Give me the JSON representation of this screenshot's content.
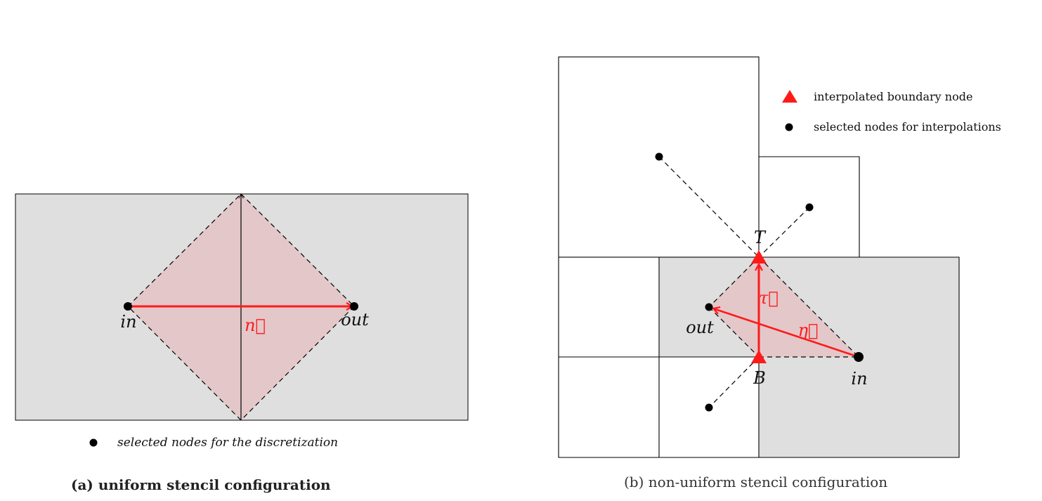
{
  "panel_a": {
    "labels": {
      "in": "in",
      "out": "out",
      "normal": "n⃗"
    },
    "legend_dot": "selected nodes for the discretization",
    "caption": "(a) uniform stencil configuration"
  },
  "panel_b": {
    "labels": {
      "T": "T",
      "B": "B",
      "out": "out",
      "in": "in",
      "tau": "τ⃗",
      "eta": "η⃗"
    },
    "legend_triangle": "interpolated boundary node",
    "legend_dot": "selected nodes for interpolations",
    "caption": "(b) non-uniform stencil configuration"
  },
  "colors": {
    "cell_fill": "#dfdfdf",
    "stencil_fill": "#e3c7c9",
    "vector": "#ff1a1a",
    "node": "#000000",
    "line": "#000000"
  }
}
